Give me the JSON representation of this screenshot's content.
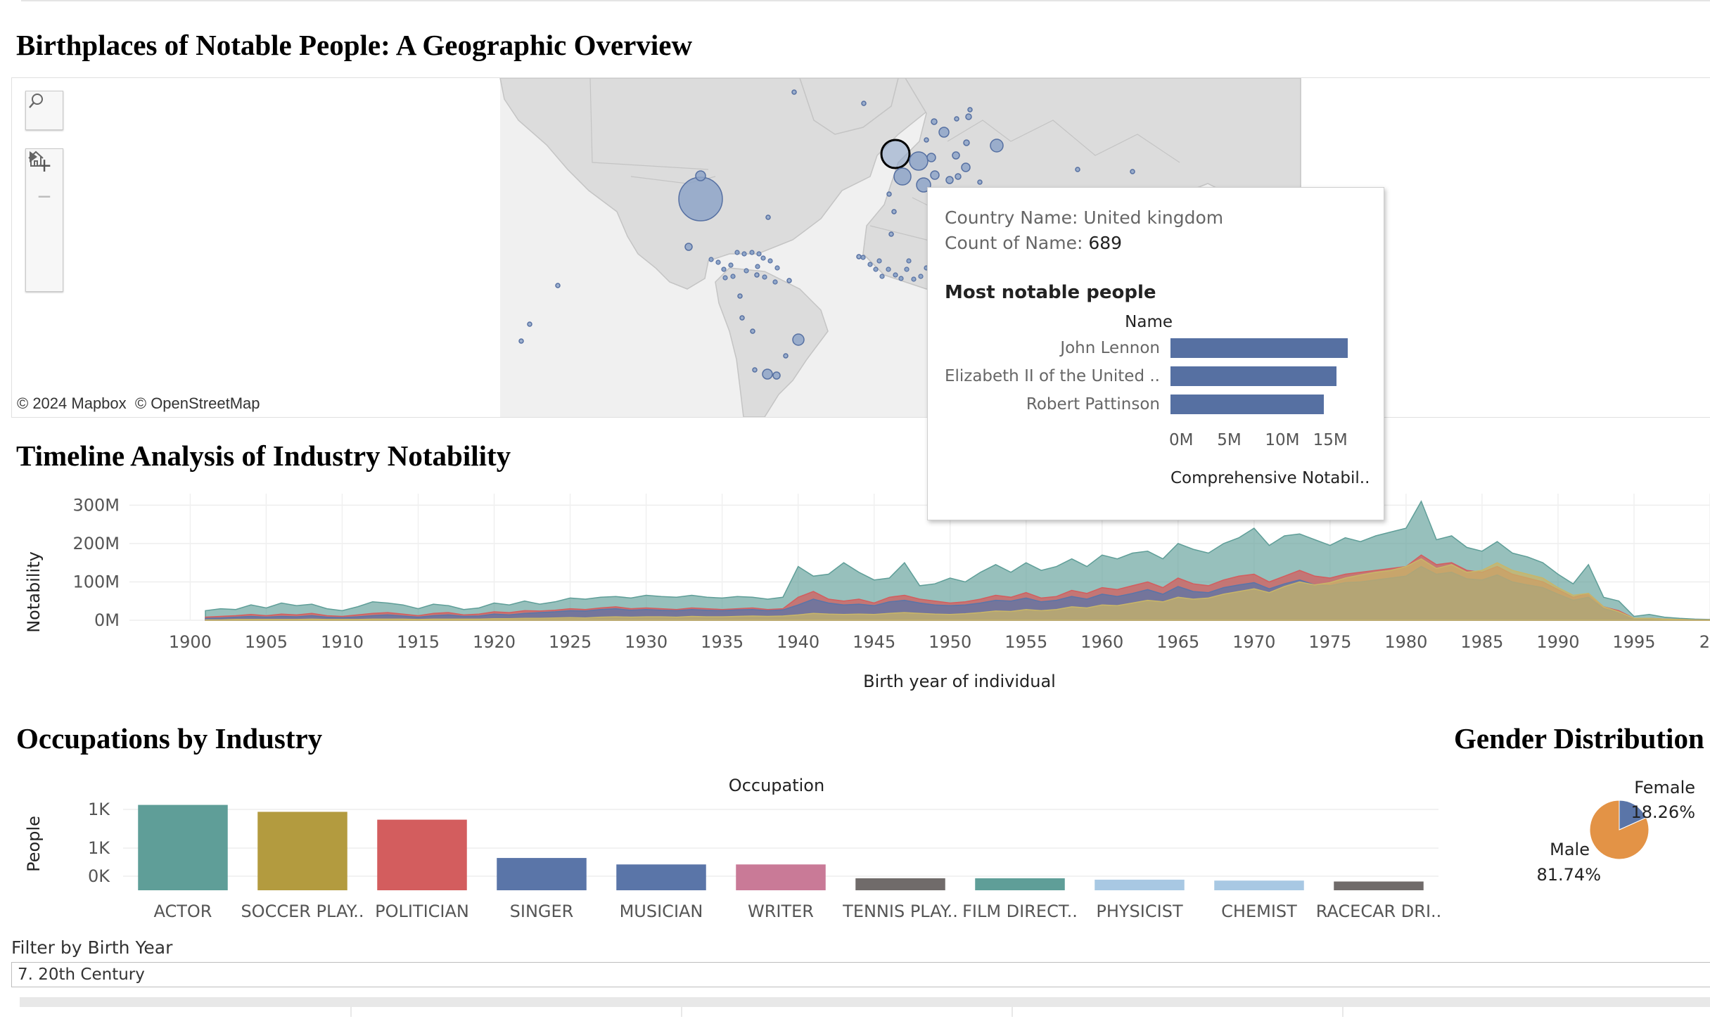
{
  "map_section": {
    "title": "Birthplaces of Notable People: A Geographic Overview",
    "attribution": "© 2024 Mapbox  © OpenStreetMap",
    "tools": {
      "search": "search-icon",
      "zoom_in": "+",
      "zoom_out": "−",
      "home": "home-icon",
      "play": "play-icon"
    },
    "colors": {
      "land": "#dcdcdc",
      "marker_fill": "#8ea5c8",
      "marker_stroke": "#5670a2"
    }
  },
  "tooltip": {
    "country_label": "Country Name:",
    "country_value": "United kingdom",
    "count_label": "Count of Name:",
    "count_value": "689",
    "heading": "Most notable people",
    "name_header": "Name",
    "axis_title": "Comprehensive Notabil..",
    "bar_color": "#5670a2",
    "chart": {
      "type": "bar",
      "categories": [
        "John Lennon",
        "Elizabeth II of the United ..",
        "Robert Pattinson"
      ],
      "values": [
        18.5,
        17.3,
        16.0
      ],
      "ticks": [
        "0M",
        "5M",
        "10M",
        "15M"
      ],
      "xlim": [
        0,
        19.5
      ]
    }
  },
  "timeline_section": {
    "title": "Timeline Analysis of Industry Notability",
    "y_title": "Notability",
    "x_title": "Birth year of individual",
    "y_ticks": [
      "0M",
      "100M",
      "200M",
      "300M"
    ],
    "x_ticks": [
      "1900",
      "1905",
      "1910",
      "1915",
      "1920",
      "1925",
      "1930",
      "1935",
      "1940",
      "1945",
      "1950",
      "1955",
      "1960",
      "1965",
      "1970",
      "1975",
      "1980",
      "1985",
      "1990",
      "1995",
      "20"
    ]
  },
  "occupation_section": {
    "title": "Occupations by Industry",
    "header": "Occupation",
    "y_title": "People",
    "y_ticks": [
      "0K",
      "1K",
      "1K"
    ]
  },
  "gender_section": {
    "title": "Gender Distribution",
    "female_label": "Female",
    "female_value": "18.26%",
    "male_label": "Male",
    "male_value": "81.74%"
  },
  "filter": {
    "label": "Filter by Birth Year",
    "value": "7. 20th Century"
  },
  "chart_data": [
    {
      "type": "area",
      "title": "Timeline Analysis of Industry Notability",
      "xlabel": "Birth year of individual",
      "ylabel": "Notability",
      "xlim": [
        1896,
        2000
      ],
      "ylim": [
        0,
        330
      ],
      "stacked": false,
      "x": [
        1901,
        1902,
        1903,
        1904,
        1905,
        1906,
        1907,
        1908,
        1909,
        1910,
        1911,
        1912,
        1913,
        1914,
        1915,
        1916,
        1917,
        1918,
        1919,
        1920,
        1921,
        1922,
        1923,
        1924,
        1925,
        1926,
        1927,
        1928,
        1929,
        1930,
        1931,
        1932,
        1933,
        1934,
        1935,
        1936,
        1937,
        1938,
        1939,
        1940,
        1941,
        1942,
        1943,
        1944,
        1945,
        1946,
        1947,
        1948,
        1949,
        1950,
        1951,
        1952,
        1953,
        1954,
        1955,
        1956,
        1957,
        1958,
        1959,
        1960,
        1961,
        1962,
        1963,
        1964,
        1965,
        1966,
        1967,
        1968,
        1969,
        1970,
        1971,
        1972,
        1973,
        1974,
        1975,
        1976,
        1977,
        1978,
        1979,
        1980,
        1981,
        1982,
        1983,
        1984,
        1985,
        1986,
        1987,
        1988,
        1989,
        1990,
        1991,
        1992,
        1993,
        1994,
        1995,
        1996,
        1997,
        1998,
        1999,
        2000
      ],
      "series": [
        {
          "color": "#5f9e98",
          "values": [
            25,
            30,
            28,
            40,
            32,
            45,
            38,
            42,
            30,
            25,
            35,
            48,
            45,
            40,
            30,
            42,
            38,
            28,
            32,
            45,
            40,
            50,
            42,
            48,
            58,
            55,
            60,
            62,
            58,
            65,
            62,
            60,
            65,
            60,
            58,
            62,
            60,
            55,
            60,
            140,
            115,
            120,
            150,
            125,
            105,
            110,
            150,
            90,
            95,
            110,
            100,
            125,
            145,
            125,
            150,
            130,
            140,
            160,
            140,
            170,
            160,
            175,
            180,
            160,
            200,
            185,
            175,
            200,
            215,
            240,
            195,
            220,
            225,
            210,
            195,
            215,
            205,
            220,
            230,
            240,
            310,
            210,
            220,
            190,
            180,
            205,
            175,
            165,
            150,
            120,
            95,
            145,
            60,
            50,
            10,
            15,
            8,
            5,
            3,
            2
          ]
        },
        {
          "color": "#d35d5e",
          "values": [
            8,
            10,
            12,
            15,
            12,
            16,
            14,
            18,
            12,
            10,
            14,
            18,
            20,
            16,
            12,
            18,
            20,
            14,
            16,
            22,
            20,
            25,
            24,
            26,
            30,
            28,
            32,
            35,
            30,
            32,
            30,
            28,
            32,
            30,
            28,
            30,
            32,
            28,
            30,
            60,
            75,
            55,
            50,
            55,
            45,
            60,
            65,
            55,
            50,
            45,
            48,
            55,
            65,
            60,
            72,
            58,
            62,
            78,
            70,
            85,
            80,
            90,
            100,
            85,
            110,
            95,
            90,
            105,
            115,
            120,
            100,
            115,
            130,
            115,
            110,
            120,
            125,
            130,
            135,
            140,
            170,
            145,
            150,
            130,
            125,
            140,
            120,
            110,
            100,
            80,
            60,
            70,
            35,
            25,
            5,
            5,
            3,
            2,
            1,
            1
          ]
        },
        {
          "color": "#5a75a8",
          "values": [
            5,
            6,
            8,
            10,
            8,
            10,
            9,
            12,
            8,
            7,
            9,
            12,
            14,
            11,
            8,
            12,
            14,
            10,
            11,
            16,
            14,
            18,
            20,
            22,
            25,
            24,
            28,
            30,
            26,
            28,
            26,
            25,
            28,
            26,
            25,
            27,
            28,
            25,
            27,
            40,
            55,
            45,
            40,
            42,
            38,
            48,
            52,
            45,
            40,
            38,
            40,
            45,
            52,
            50,
            58,
            48,
            52,
            62,
            55,
            68,
            62,
            70,
            80,
            68,
            88,
            75,
            72,
            85,
            92,
            98,
            82,
            95,
            105,
            92,
            90,
            98,
            100,
            105,
            110,
            115,
            140,
            120,
            125,
            108,
            105,
            118,
            100,
            92,
            85,
            68,
            52,
            60,
            30,
            20,
            4,
            4,
            2,
            1,
            1,
            1
          ]
        },
        {
          "color": "#c9b668",
          "values": [
            1,
            1,
            2,
            2,
            2,
            2,
            2,
            3,
            2,
            2,
            2,
            3,
            3,
            3,
            2,
            3,
            3,
            3,
            3,
            4,
            4,
            5,
            5,
            6,
            7,
            6,
            8,
            9,
            8,
            9,
            9,
            8,
            10,
            9,
            9,
            10,
            11,
            10,
            11,
            14,
            18,
            16,
            15,
            16,
            15,
            18,
            20,
            18,
            16,
            15,
            17,
            20,
            24,
            23,
            28,
            25,
            28,
            35,
            32,
            40,
            38,
            45,
            52,
            48,
            60,
            55,
            58,
            68,
            75,
            82,
            72,
            88,
            100,
            92,
            98,
            110,
            118,
            125,
            130,
            140,
            160,
            135,
            145,
            125,
            130,
            150,
            130,
            120,
            110,
            85,
            65,
            70,
            35,
            22,
            5,
            5,
            3,
            2,
            1,
            1
          ]
        }
      ]
    },
    {
      "type": "bar",
      "title": "Occupations by Industry",
      "xlabel": "Occupation",
      "ylabel": "People",
      "ylim": [
        0,
        1920
      ],
      "categories": [
        "ACTOR",
        "SOCCER PLAY..",
        "POLITICIAN",
        "SINGER",
        "MUSICIAN",
        "WRITER",
        "TENNIS PLAY..",
        "FILM DIRECT..",
        "PHYSICIST",
        "CHEMIST",
        "RACECAR DRI.."
      ],
      "values": [
        1850,
        1700,
        1530,
        700,
        560,
        560,
        260,
        260,
        230,
        210,
        190
      ],
      "colors": [
        "#5f9e98",
        "#b39b3f",
        "#d35d5e",
        "#5a75a8",
        "#5a75a8",
        "#c97a97",
        "#706b6a",
        "#5f9e98",
        "#a8c8e3",
        "#a8c8e3",
        "#706b6a"
      ]
    },
    {
      "type": "pie",
      "title": "Gender Distribution",
      "categories": [
        "Female",
        "Male"
      ],
      "values": [
        18.26,
        81.74
      ],
      "colors": [
        "#5a75a8",
        "#e39346"
      ]
    }
  ]
}
